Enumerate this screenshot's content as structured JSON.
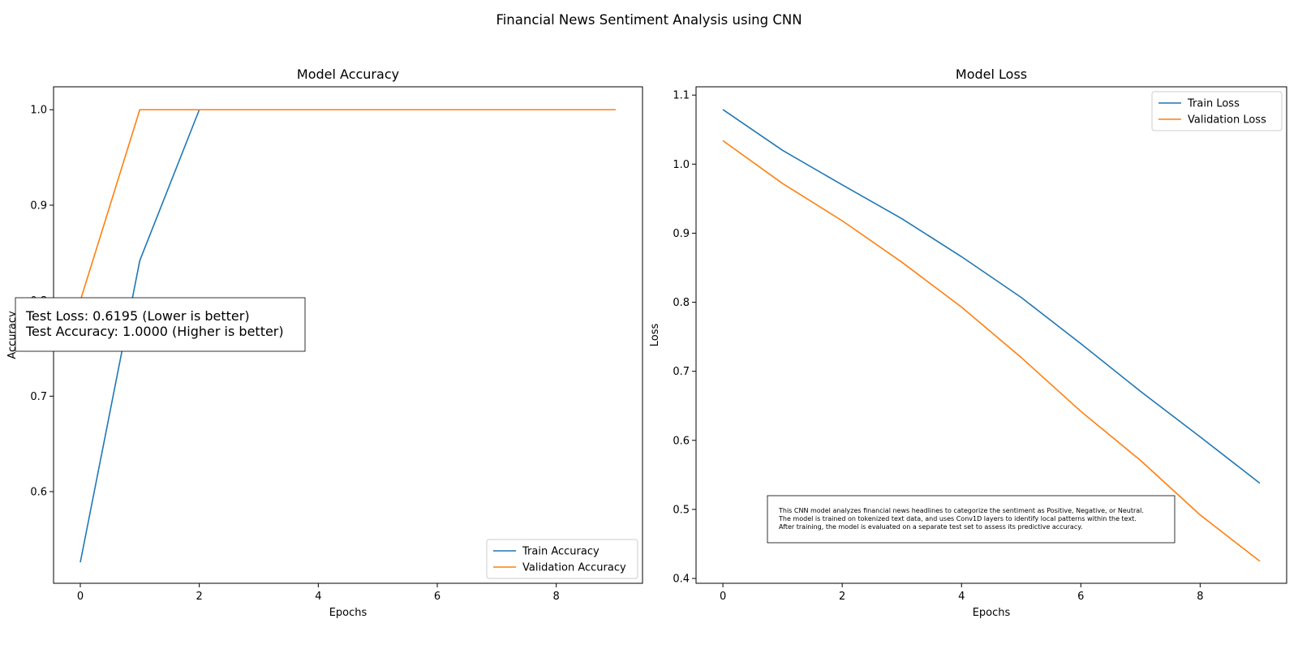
{
  "figure": {
    "suptitle": "Financial News Sentiment Analysis using CNN"
  },
  "colors": {
    "train": "#1f77b4",
    "validation": "#ff7f0e"
  },
  "chart_data": [
    {
      "type": "line",
      "title": "Model Accuracy",
      "xlabel": "Epochs",
      "ylabel": "Accuracy",
      "x": [
        0,
        1,
        2,
        3,
        4,
        5,
        6,
        7,
        8,
        9
      ],
      "xlim": [
        -0.45,
        9.45
      ],
      "ylim": [
        0.504,
        1.024
      ],
      "xticks": [
        0,
        2,
        4,
        6,
        8
      ],
      "yticks": [
        0.6,
        0.7,
        0.8,
        0.9,
        1.0
      ],
      "ytick_labels": [
        "0.6",
        "0.7",
        "0.8",
        "0.9",
        "1.0"
      ],
      "grid": false,
      "legend": "lower-right",
      "series": [
        {
          "name": "Train Accuracy",
          "color": "#1f77b4",
          "values": [
            0.526,
            0.842,
            1.0,
            1.0,
            1.0,
            1.0,
            1.0,
            1.0,
            1.0,
            1.0
          ]
        },
        {
          "name": "Validation Accuracy",
          "color": "#ff7f0e",
          "values": [
            0.8,
            1.0,
            1.0,
            1.0,
            1.0,
            1.0,
            1.0,
            1.0,
            1.0,
            1.0
          ]
        }
      ],
      "annotation": {
        "lines": [
          "Test Loss: 0.6195 (Lower is better)",
          "Test Accuracy: 1.0000 (Higher is better)"
        ]
      }
    },
    {
      "type": "line",
      "title": "Model Loss",
      "xlabel": "Epochs",
      "ylabel": "Loss",
      "x": [
        0,
        1,
        2,
        3,
        4,
        5,
        6,
        7,
        8,
        9
      ],
      "xlim": [
        -0.45,
        9.45
      ],
      "ylim": [
        0.393,
        1.112
      ],
      "xticks": [
        0,
        2,
        4,
        6,
        8
      ],
      "yticks": [
        0.4,
        0.5,
        0.6,
        0.7,
        0.8,
        0.9,
        1.0,
        1.1
      ],
      "ytick_labels": [
        "0.4",
        "0.5",
        "0.6",
        "0.7",
        "0.8",
        "0.9",
        "1.0",
        "1.1"
      ],
      "grid": false,
      "legend": "top-right",
      "series": [
        {
          "name": "Train Loss",
          "color": "#1f77b4",
          "values": [
            1.079,
            1.02,
            0.97,
            0.921,
            0.866,
            0.807,
            0.74,
            0.671,
            0.605,
            0.538
          ]
        },
        {
          "name": "Validation Loss",
          "color": "#ff7f0e",
          "values": [
            1.034,
            0.972,
            0.918,
            0.858,
            0.793,
            0.72,
            0.642,
            0.571,
            0.492,
            0.425
          ]
        }
      ],
      "annotation": {
        "lines": [
          "This CNN model analyzes financial news headlines to categorize the sentiment as Positive, Negative, or Neutral.",
          "The model is trained on tokenized text data, and uses Conv1D layers to identify local patterns within the text.",
          "After training, the model is evaluated on a separate test set to assess its predictive accuracy."
        ]
      }
    }
  ]
}
